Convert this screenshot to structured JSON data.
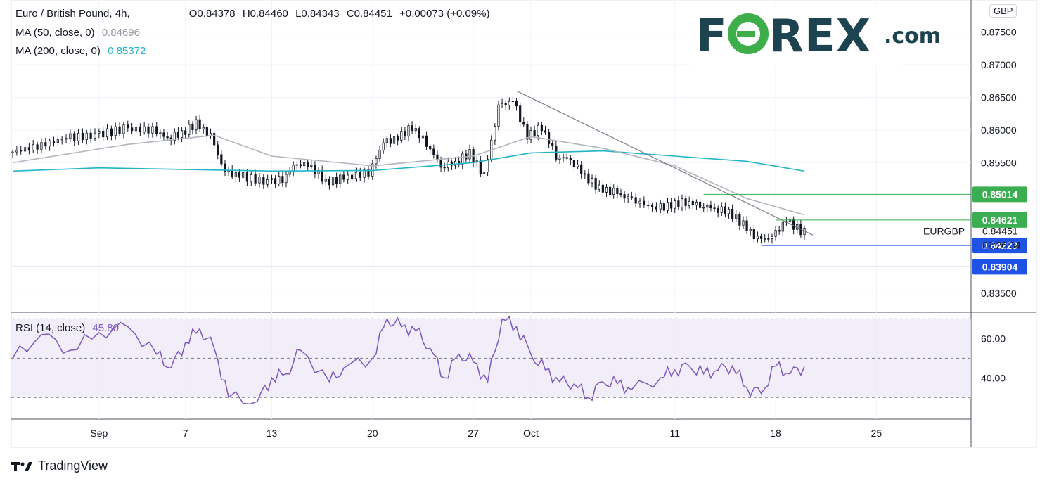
{
  "header": {
    "symbol_title": "Euro / British Pound, 4h,",
    "ohlc": {
      "open": "O0.84378",
      "high": "H0.84460",
      "low": "L0.84343",
      "close": "C0.84451",
      "change": "+0.00073 (+0.09%)"
    },
    "ma50_label": "MA (50, close, 0)",
    "ma50_value": "0.84696",
    "ma200_label": "MA (200, close, 0)",
    "ma200_value": "0.85372",
    "currency_badge": "GBP"
  },
  "logo": {
    "brand": "FOREX",
    "domain": ".com",
    "accent_color": "#3dae49",
    "text_color": "#1d4250"
  },
  "footer": {
    "brand": "TradingView"
  },
  "colors": {
    "up": "#131722",
    "down": "#131722",
    "ma50": "#b2b5be",
    "ma200": "#22b5c9",
    "rsi": "#7e57c2",
    "level_green": "#3bae52",
    "level_blue": "#1e53e5",
    "trendline": "#787b86"
  },
  "price_labels": [
    {
      "text": "0.85014",
      "style": "green"
    },
    {
      "text": "0.84621",
      "style": "green"
    },
    {
      "text": "0.84229",
      "style": "blue"
    },
    {
      "text": "0.83904",
      "style": "blue"
    }
  ],
  "last_price": {
    "symbol": "EURGBP",
    "price": "0.84451",
    "countdown": "02:26:34"
  },
  "rsi_legend": {
    "label": "RSI (14, close)",
    "value": "45.80"
  },
  "chart_data": [
    {
      "type": "candlestick",
      "title": "Euro / British Pound, 4h",
      "y_ticks": [
        "0.87500",
        "0.87000",
        "0.86500",
        "0.86000",
        "0.85500",
        "0.83500"
      ],
      "ylim": [
        0.8325,
        0.8795
      ],
      "x_ticks": [
        "Sep",
        "7",
        "13",
        "20",
        "27",
        "Oct",
        "11",
        "18",
        "25"
      ],
      "x_dates": [
        "2021-09-01",
        "2021-09-07",
        "2021-09-13",
        "2021-09-20",
        "2021-09-27",
        "2021-10-01",
        "2021-10-11",
        "2021-10-18",
        "2021-10-25"
      ],
      "date_range": [
        "2021-08-26",
        "2021-10-20"
      ],
      "close_series": [
        {
          "d": "2021-08-26",
          "v": 0.8565
        },
        {
          "d": "2021-08-28",
          "v": 0.8575
        },
        {
          "d": "2021-08-30",
          "v": 0.8588
        },
        {
          "d": "2021-09-01",
          "v": 0.8592
        },
        {
          "d": "2021-09-03",
          "v": 0.8602
        },
        {
          "d": "2021-09-05",
          "v": 0.86
        },
        {
          "d": "2021-09-06",
          "v": 0.8588
        },
        {
          "d": "2021-09-07",
          "v": 0.8595
        },
        {
          "d": "2021-09-08",
          "v": 0.861
        },
        {
          "d": "2021-09-09",
          "v": 0.859
        },
        {
          "d": "2021-09-10",
          "v": 0.8535
        },
        {
          "d": "2021-09-11",
          "v": 0.853
        },
        {
          "d": "2021-09-13",
          "v": 0.852
        },
        {
          "d": "2021-09-14",
          "v": 0.8525
        },
        {
          "d": "2021-09-15",
          "v": 0.855
        },
        {
          "d": "2021-09-16",
          "v": 0.8545
        },
        {
          "d": "2021-09-17",
          "v": 0.852
        },
        {
          "d": "2021-09-18",
          "v": 0.8525
        },
        {
          "d": "2021-09-20",
          "v": 0.8535
        },
        {
          "d": "2021-09-21",
          "v": 0.858
        },
        {
          "d": "2021-09-22",
          "v": 0.8588
        },
        {
          "d": "2021-09-23",
          "v": 0.8605
        },
        {
          "d": "2021-09-24",
          "v": 0.858
        },
        {
          "d": "2021-09-25",
          "v": 0.8545
        },
        {
          "d": "2021-09-26",
          "v": 0.855
        },
        {
          "d": "2021-09-27",
          "v": 0.8565
        },
        {
          "d": "2021-09-28",
          "v": 0.853
        },
        {
          "d": "2021-09-29",
          "v": 0.8635
        },
        {
          "d": "2021-09-30",
          "v": 0.8645
        },
        {
          "d": "2021-10-01",
          "v": 0.859
        },
        {
          "d": "2021-10-02",
          "v": 0.8605
        },
        {
          "d": "2021-10-03",
          "v": 0.856
        },
        {
          "d": "2021-10-04",
          "v": 0.8555
        },
        {
          "d": "2021-10-05",
          "v": 0.853
        },
        {
          "d": "2021-10-06",
          "v": 0.851
        },
        {
          "d": "2021-10-07",
          "v": 0.8505
        },
        {
          "d": "2021-10-08",
          "v": 0.8495
        },
        {
          "d": "2021-10-10",
          "v": 0.848
        },
        {
          "d": "2021-10-11",
          "v": 0.8485
        },
        {
          "d": "2021-10-12",
          "v": 0.849
        },
        {
          "d": "2021-10-13",
          "v": 0.8485
        },
        {
          "d": "2021-10-14",
          "v": 0.848
        },
        {
          "d": "2021-10-15",
          "v": 0.8475
        },
        {
          "d": "2021-10-16",
          "v": 0.8455
        },
        {
          "d": "2021-10-17",
          "v": 0.8432
        },
        {
          "d": "2021-10-18",
          "v": 0.8435
        },
        {
          "d": "2021-10-19",
          "v": 0.8462
        },
        {
          "d": "2021-10-20",
          "v": 0.8445
        }
      ],
      "ma50": [
        {
          "d": "2021-08-26",
          "v": 0.855
        },
        {
          "d": "2021-09-03",
          "v": 0.8578
        },
        {
          "d": "2021-09-09",
          "v": 0.8592
        },
        {
          "d": "2021-09-13",
          "v": 0.856
        },
        {
          "d": "2021-09-20",
          "v": 0.8545
        },
        {
          "d": "2021-09-27",
          "v": 0.856
        },
        {
          "d": "2021-10-01",
          "v": 0.859
        },
        {
          "d": "2021-10-06",
          "v": 0.8572
        },
        {
          "d": "2021-10-11",
          "v": 0.8545
        },
        {
          "d": "2021-10-16",
          "v": 0.8495
        },
        {
          "d": "2021-10-20",
          "v": 0.847
        }
      ],
      "ma200": [
        {
          "d": "2021-08-26",
          "v": 0.8537
        },
        {
          "d": "2021-09-01",
          "v": 0.8542
        },
        {
          "d": "2021-09-13",
          "v": 0.8537
        },
        {
          "d": "2021-09-20",
          "v": 0.8538
        },
        {
          "d": "2021-09-27",
          "v": 0.855
        },
        {
          "d": "2021-10-01",
          "v": 0.8565
        },
        {
          "d": "2021-10-06",
          "v": 0.8568
        },
        {
          "d": "2021-10-11",
          "v": 0.856
        },
        {
          "d": "2021-10-16",
          "v": 0.8552
        },
        {
          "d": "2021-10-20",
          "v": 0.8537
        }
      ],
      "trendline": [
        {
          "d": "2021-09-30",
          "v": 0.866
        },
        {
          "d": "2021-10-20",
          "v": 0.844
        }
      ],
      "horizontal_levels": [
        {
          "value": 0.85014,
          "from": "2021-10-13",
          "color": "green"
        },
        {
          "value": 0.84621,
          "from": "2021-10-18",
          "color": "green"
        },
        {
          "value": 0.84229,
          "from": "2021-10-17",
          "color": "blue"
        },
        {
          "value": 0.83904,
          "from": "2021-08-26",
          "color": "blue"
        }
      ]
    },
    {
      "type": "line",
      "title": "RSI (14, close)",
      "y_ticks": [
        "60.00",
        "40.00"
      ],
      "ylim": [
        19,
        73
      ],
      "band": [
        30,
        70
      ],
      "midline": 50,
      "series": [
        {
          "d": "2021-08-26",
          "v": 50
        },
        {
          "d": "2021-08-28",
          "v": 62
        },
        {
          "d": "2021-08-30",
          "v": 54
        },
        {
          "d": "2021-09-01",
          "v": 63
        },
        {
          "d": "2021-09-03",
          "v": 66
        },
        {
          "d": "2021-09-05",
          "v": 52
        },
        {
          "d": "2021-09-06",
          "v": 45
        },
        {
          "d": "2021-09-07",
          "v": 58
        },
        {
          "d": "2021-09-08",
          "v": 65
        },
        {
          "d": "2021-09-09",
          "v": 55
        },
        {
          "d": "2021-09-10",
          "v": 30
        },
        {
          "d": "2021-09-12",
          "v": 28
        },
        {
          "d": "2021-09-13",
          "v": 40
        },
        {
          "d": "2021-09-14",
          "v": 42
        },
        {
          "d": "2021-09-15",
          "v": 54
        },
        {
          "d": "2021-09-17",
          "v": 38
        },
        {
          "d": "2021-09-18",
          "v": 45
        },
        {
          "d": "2021-09-20",
          "v": 50
        },
        {
          "d": "2021-09-21",
          "v": 70
        },
        {
          "d": "2021-09-22",
          "v": 66
        },
        {
          "d": "2021-09-23",
          "v": 64
        },
        {
          "d": "2021-09-24",
          "v": 55
        },
        {
          "d": "2021-09-25",
          "v": 40
        },
        {
          "d": "2021-09-26",
          "v": 52
        },
        {
          "d": "2021-09-27",
          "v": 48
        },
        {
          "d": "2021-09-28",
          "v": 38
        },
        {
          "d": "2021-09-29",
          "v": 70
        },
        {
          "d": "2021-09-30",
          "v": 66
        },
        {
          "d": "2021-10-01",
          "v": 52
        },
        {
          "d": "2021-10-02",
          "v": 44
        },
        {
          "d": "2021-10-03",
          "v": 38
        },
        {
          "d": "2021-10-04",
          "v": 37
        },
        {
          "d": "2021-10-05",
          "v": 30
        },
        {
          "d": "2021-10-06",
          "v": 38
        },
        {
          "d": "2021-10-07",
          "v": 37
        },
        {
          "d": "2021-10-08",
          "v": 34
        },
        {
          "d": "2021-10-10",
          "v": 40
        },
        {
          "d": "2021-10-11",
          "v": 44
        },
        {
          "d": "2021-10-12",
          "v": 46
        },
        {
          "d": "2021-10-13",
          "v": 42
        },
        {
          "d": "2021-10-14",
          "v": 44
        },
        {
          "d": "2021-10-15",
          "v": 46
        },
        {
          "d": "2021-10-16",
          "v": 35
        },
        {
          "d": "2021-10-17",
          "v": 32
        },
        {
          "d": "2021-10-18",
          "v": 46
        },
        {
          "d": "2021-10-19",
          "v": 42
        },
        {
          "d": "2021-10-20",
          "v": 45.8
        }
      ]
    }
  ]
}
